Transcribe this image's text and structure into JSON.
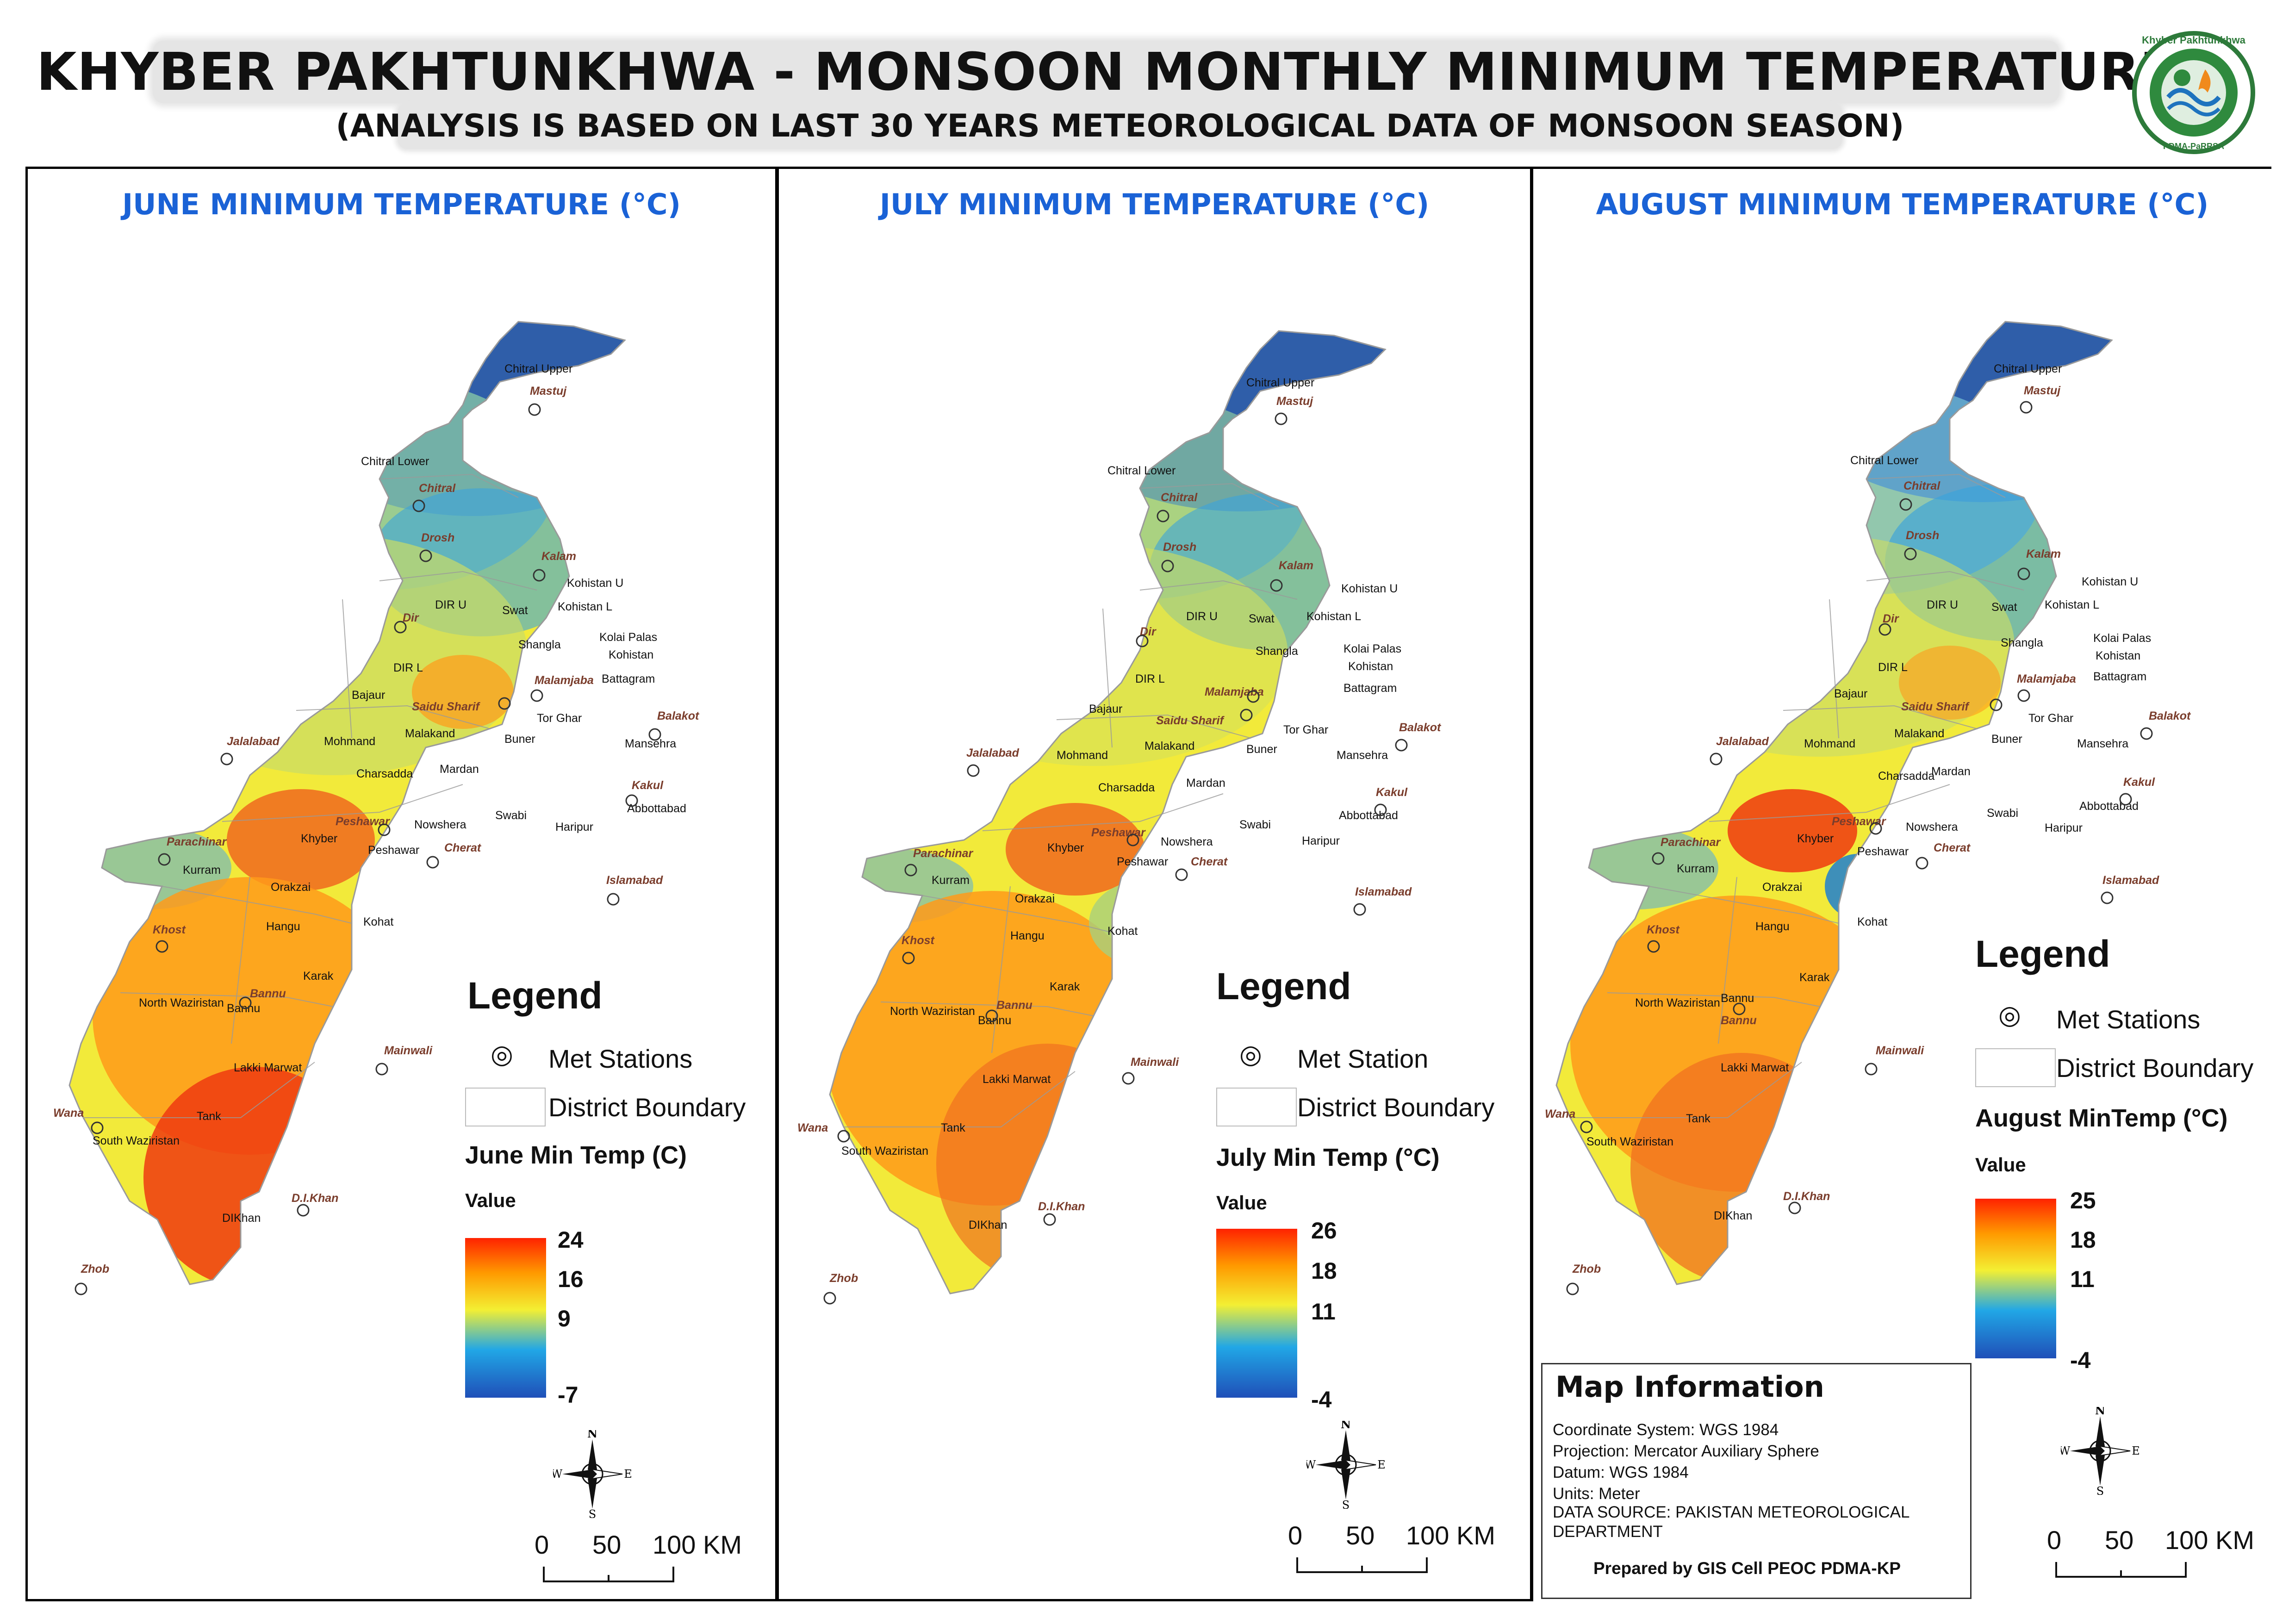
{
  "header": {
    "title": "KHYBER PAKHTUNKHWA - MONSOON MONTHLY MINIMUM TEMPERATURE",
    "subtitle": "(ANALYSIS IS BASED ON LAST 30 YEARS METEOROLOGICAL DATA OF MONSOON SEASON)",
    "logo_text_top": "Khyber Pakhtunkhwa",
    "logo_text_bottom": "PDMA-PaRRSA"
  },
  "colors": {
    "panel_title": "#1a62d6",
    "ramp_hot": "#ff2200",
    "ramp_mid": "#f3ef33",
    "ramp_cold": "#1f4fb8",
    "station_label": "#7a3d2c"
  },
  "panels": [
    {
      "id": "june",
      "title": "JUNE MINIMUM TEMPERATURE (°C)",
      "legend_title": "Legend",
      "legend_station": "Met Stations",
      "legend_boundary": "District Boundary",
      "legend_field": "June Min Temp (C)",
      "legend_value_label": "Value",
      "ramp_ticks": [
        "24",
        "16",
        "9",
        "-7"
      ],
      "scale": {
        "zero": "0",
        "mid": "50",
        "end": "100 KM"
      }
    },
    {
      "id": "july",
      "title": "JULY MINIMUM TEMPERATURE (°C)",
      "legend_title": "Legend",
      "legend_station": "Met Station",
      "legend_boundary": "District Boundary",
      "legend_field": "July Min Temp (°C)",
      "legend_value_label": "Value",
      "ramp_ticks": [
        "26",
        "18",
        "11",
        "-4"
      ],
      "scale": {
        "zero": "0",
        "mid": "50",
        "end": "100 KM"
      }
    },
    {
      "id": "august",
      "title": "AUGUST MINIMUM TEMPERATURE (°C)",
      "legend_title": "Legend",
      "legend_station": "Met Stations",
      "legend_boundary": "District Boundary",
      "legend_field": "August MinTemp (°C)",
      "legend_value_label": "Value",
      "ramp_ticks": [
        "25",
        "18",
        "11",
        "-4"
      ],
      "scale": {
        "zero": "0",
        "mid": "50",
        "end": "100 KM"
      }
    }
  ],
  "compass": {
    "n": "N",
    "s": "S",
    "e": "E",
    "w": "W"
  },
  "districts": [
    "Chitral Upper",
    "Chitral Lower",
    "Kohistan U",
    "Kohistan L",
    "DIR U",
    "Swat",
    "Shangla",
    "Kolai Palas",
    "Kohistan",
    "DIR L",
    "Bajaur",
    "Battagram",
    "Tor Ghar",
    "Mohmand",
    "Malakand",
    "Buner",
    "Mansehra",
    "Charsadda",
    "Mardan",
    "Abbottabad",
    "Swabi",
    "Khyber",
    "Nowshera",
    "Peshawar",
    "Haripur",
    "Kurram",
    "Orakzai",
    "Hangu",
    "Kohat",
    "Karak",
    "North Waziristan",
    "Bannu",
    "Lakki Marwat",
    "Tank",
    "South Waziristan",
    "DIKhan"
  ],
  "stations": [
    "Mastuj",
    "Chitral",
    "Drosh",
    "Kalam",
    "Dir",
    "Malamjaba",
    "Saidu Sharif",
    "Balakot",
    "Kakul",
    "Jalalabad",
    "Parachinar",
    "Peshawar",
    "Cherat",
    "Islamabad",
    "Khost",
    "Bannu",
    "Mainwali",
    "Wana",
    "D.I.Khan",
    "Zhob"
  ],
  "map_info": {
    "title": "Map Information",
    "lines": [
      "Coordinate System: WGS 1984",
      "Projection: Mercator Auxiliary Sphere",
      "Datum: WGS 1984",
      "Units: Meter",
      "DATA SOURCE: PAKISTAN METEOROLOGICAL",
      " DEPARTMENT"
    ],
    "credit": "Prepared by GIS Cell PEOC PDMA-KP"
  }
}
